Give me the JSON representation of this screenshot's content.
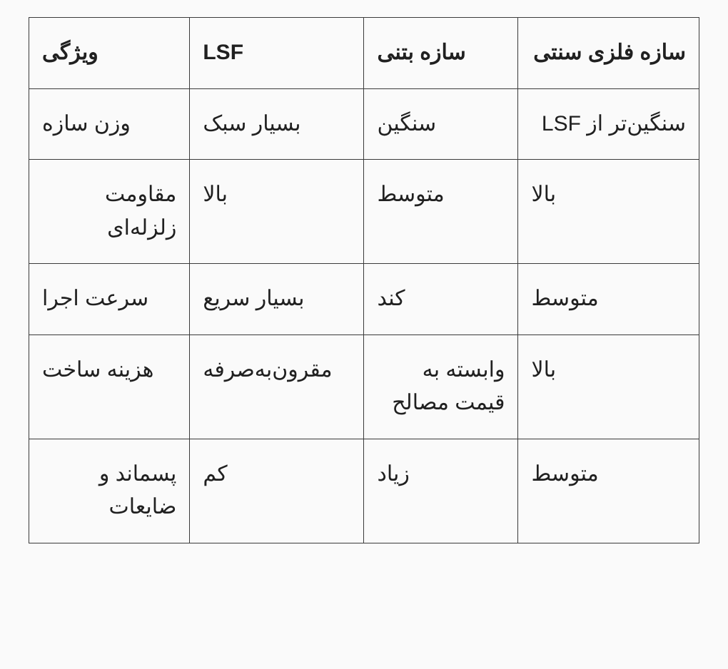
{
  "table": {
    "type": "table",
    "background_color": "#fafafa",
    "border_color": "#3a3a3a",
    "text_color": "#202020",
    "font_family": "Tahoma",
    "header_fontsize_pt": 22,
    "cell_fontsize_pt": 22,
    "header_font_weight": 700,
    "cell_font_weight": 400,
    "column_widths_pct": [
      24,
      26,
      23,
      27
    ],
    "columns": [
      {
        "key": "feature",
        "label": "ویژگی"
      },
      {
        "key": "lsf",
        "label": "LSF"
      },
      {
        "key": "concrete",
        "label": "سازه بتنی"
      },
      {
        "key": "steel",
        "label": "سازه فلزی سنتی"
      }
    ],
    "rows": [
      {
        "feature": "وزن سازه",
        "lsf": "بسیار سبک",
        "concrete": "سنگین",
        "steel": "سنگین‌تر از LSF"
      },
      {
        "feature": "مقاومت زلزله‌ای",
        "lsf": "بالا",
        "concrete": "متوسط",
        "steel": "بالا"
      },
      {
        "feature": "سرعت اجرا",
        "lsf": "بسیار سریع",
        "concrete": "کند",
        "steel": "متوسط"
      },
      {
        "feature": "هزینه ساخت",
        "lsf": "مقرون‌به‌صرفه",
        "concrete": "وابسته به قیمت مصالح",
        "steel": "بالا"
      },
      {
        "feature": "پسماند و ضایعات",
        "lsf": "کم",
        "concrete": "زیاد",
        "steel": "متوسط"
      }
    ]
  }
}
